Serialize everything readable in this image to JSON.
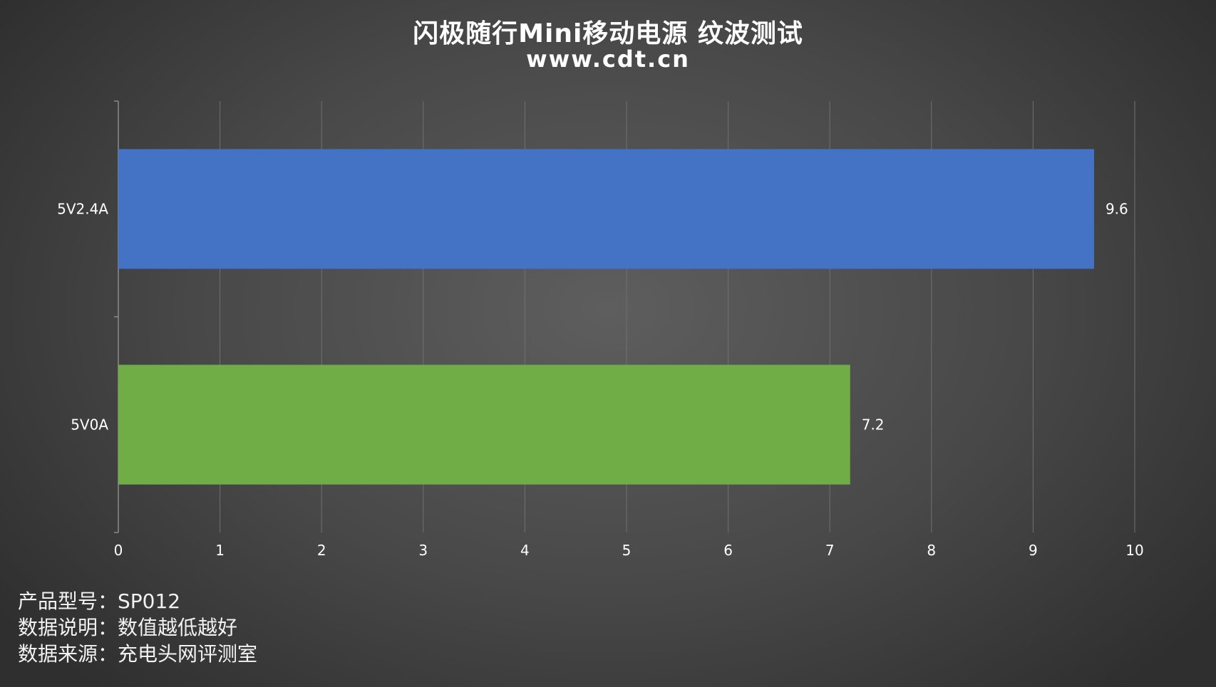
{
  "title": "闪极随行Mini移动电源 纹波测试",
  "subtitle": "www.cdt.cn",
  "notes": {
    "model": "产品型号：SP012",
    "explanation": "数据说明：数值越低越好",
    "source": "数据来源：充电头网评测室"
  },
  "colors": {
    "bar_1": "#4472c4",
    "bar_2": "#70ad47",
    "grid": "#707070",
    "text": "#ffffff"
  },
  "chart_data": {
    "type": "bar",
    "orientation": "horizontal",
    "title": "闪极随行Mini移动电源 纹波测试",
    "categories": [
      "5V2.4A",
      "5V0A"
    ],
    "values": [
      9.6,
      7.2
    ],
    "data_labels": [
      "9.6",
      "7.2"
    ],
    "x_ticks": [
      "0",
      "1",
      "2",
      "3",
      "4",
      "5",
      "6",
      "7",
      "8",
      "9",
      "10"
    ],
    "xlim": [
      0,
      10
    ],
    "grid": true,
    "legend": "none"
  }
}
